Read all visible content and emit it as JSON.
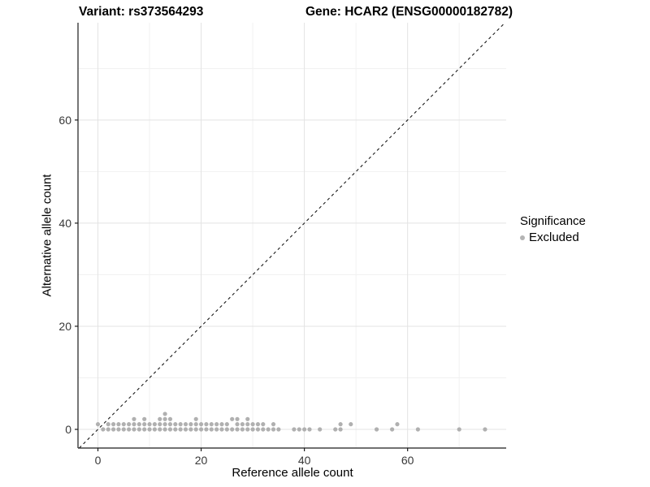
{
  "header": {
    "title_left": "Variant: rs373564293",
    "title_right": "Gene: HCAR2 (ENSG00000182782)"
  },
  "chart_data": {
    "type": "scatter",
    "xlabel": "Reference allele count",
    "ylabel": "Alternative allele count",
    "xlim": [
      -3.86,
      79.1
    ],
    "ylim": [
      -3.62,
      78.87
    ],
    "xticks": [
      0,
      20,
      40,
      60
    ],
    "yticks": [
      0,
      20,
      40,
      60
    ],
    "minor_xticks": [
      10,
      30,
      50,
      70
    ],
    "minor_yticks": [
      10,
      30,
      50,
      70
    ],
    "grid": "major+minor",
    "identity_line": {
      "type": "y=x",
      "style": "dashed",
      "color": "#1a1a1a"
    },
    "legend": {
      "position": "right",
      "title": "Significance",
      "entries": [
        {
          "label": "Excluded",
          "color": "#b4b4b4"
        }
      ]
    },
    "point_color": "#b0b0b0",
    "point_radius": 2.6,
    "series": [
      {
        "name": "Excluded",
        "points": [
          [
            1,
            0
          ],
          [
            2,
            0
          ],
          [
            3,
            0
          ],
          [
            4,
            0
          ],
          [
            5,
            0
          ],
          [
            6,
            0
          ],
          [
            7,
            0
          ],
          [
            8,
            0
          ],
          [
            9,
            0
          ],
          [
            10,
            0
          ],
          [
            11,
            0
          ],
          [
            12,
            0
          ],
          [
            13,
            0
          ],
          [
            14,
            0
          ],
          [
            15,
            0
          ],
          [
            16,
            0
          ],
          [
            17,
            0
          ],
          [
            18,
            0
          ],
          [
            19,
            0
          ],
          [
            20,
            0
          ],
          [
            21,
            0
          ],
          [
            22,
            0
          ],
          [
            23,
            0
          ],
          [
            24,
            0
          ],
          [
            25,
            0
          ],
          [
            26,
            0
          ],
          [
            27,
            0
          ],
          [
            28,
            0
          ],
          [
            29,
            0
          ],
          [
            30,
            0
          ],
          [
            31,
            0
          ],
          [
            32,
            0
          ],
          [
            33,
            0
          ],
          [
            34,
            0
          ],
          [
            35,
            0
          ],
          [
            38,
            0
          ],
          [
            39,
            0
          ],
          [
            40,
            0
          ],
          [
            41,
            0
          ],
          [
            43,
            0
          ],
          [
            46,
            0
          ],
          [
            47,
            0
          ],
          [
            54,
            0
          ],
          [
            57,
            0
          ],
          [
            62,
            0
          ],
          [
            70,
            0
          ],
          [
            75,
            0
          ],
          [
            0,
            1
          ],
          [
            2,
            1
          ],
          [
            3,
            1
          ],
          [
            4,
            1
          ],
          [
            5,
            1
          ],
          [
            6,
            1
          ],
          [
            7,
            1
          ],
          [
            8,
            1
          ],
          [
            9,
            1
          ],
          [
            10,
            1
          ],
          [
            11,
            1
          ],
          [
            12,
            1
          ],
          [
            13,
            1
          ],
          [
            14,
            1
          ],
          [
            15,
            1
          ],
          [
            16,
            1
          ],
          [
            17,
            1
          ],
          [
            18,
            1
          ],
          [
            19,
            1
          ],
          [
            20,
            1
          ],
          [
            21,
            1
          ],
          [
            22,
            1
          ],
          [
            23,
            1
          ],
          [
            24,
            1
          ],
          [
            25,
            1
          ],
          [
            27,
            1
          ],
          [
            28,
            1
          ],
          [
            29,
            1
          ],
          [
            30,
            1
          ],
          [
            31,
            1
          ],
          [
            32,
            1
          ],
          [
            34,
            1
          ],
          [
            47,
            1
          ],
          [
            49,
            1
          ],
          [
            58,
            1
          ],
          [
            7,
            2
          ],
          [
            9,
            2
          ],
          [
            12,
            2
          ],
          [
            13,
            2
          ],
          [
            14,
            2
          ],
          [
            19,
            2
          ],
          [
            26,
            2
          ],
          [
            27,
            2
          ],
          [
            29,
            2
          ],
          [
            13,
            3
          ]
        ]
      }
    ],
    "colors": {
      "axis_line": "#1c1c1c",
      "tick_label": "#383838",
      "major_grid": "#e3e3e3",
      "minor_grid": "#f1f1f1"
    }
  }
}
